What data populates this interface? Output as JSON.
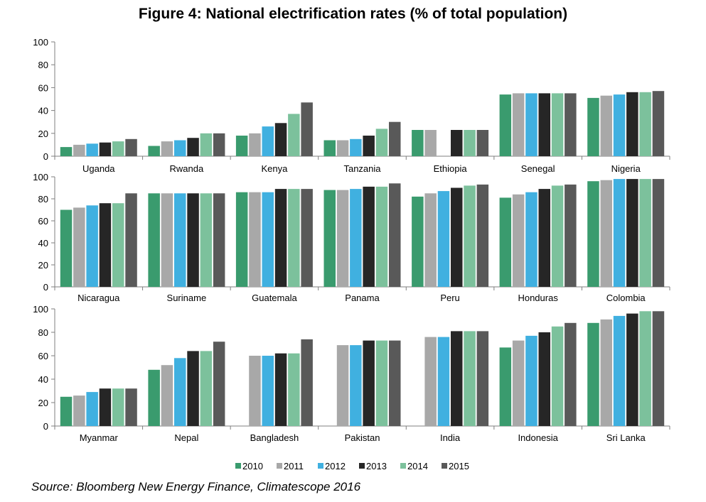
{
  "title": "Figure 4: National electrification rates (% of total population)",
  "source": "Source: Bloomberg New Energy Finance, Climatescope 2016",
  "colors": {
    "axis": "#7f7f7f",
    "text": "#000000",
    "series": [
      "#3a9b6e",
      "#a8a8a8",
      "#40b0e0",
      "#262626",
      "#7cc19c",
      "#595959"
    ]
  },
  "legend": [
    "2010",
    "2011",
    "2012",
    "2013",
    "2014",
    "2015"
  ],
  "chart_data": [
    {
      "type": "bar",
      "title": "",
      "xlabel": "",
      "ylabel": "",
      "ylim": [
        0,
        100
      ],
      "yticks": [
        "0",
        "20",
        "40",
        "60",
        "80",
        "100"
      ],
      "grid": false,
      "legend_position": "bottom",
      "categories": [
        "Uganda",
        "Rwanda",
        "Kenya",
        "Tanzania",
        "Ethiopia",
        "Senegal",
        "Nigeria"
      ],
      "series": [
        {
          "name": "2010",
          "values": [
            8,
            9,
            18,
            14,
            23,
            54,
            51
          ]
        },
        {
          "name": "2011",
          "values": [
            10,
            13,
            20,
            14,
            23,
            55,
            53
          ]
        },
        {
          "name": "2012",
          "values": [
            11,
            14,
            26,
            15,
            null,
            55,
            54
          ]
        },
        {
          "name": "2013",
          "values": [
            12,
            16,
            29,
            18,
            23,
            55,
            56
          ]
        },
        {
          "name": "2014",
          "values": [
            13,
            20,
            37,
            24,
            23,
            55,
            56
          ]
        },
        {
          "name": "2015",
          "values": [
            15,
            20,
            47,
            30,
            23,
            55,
            57
          ]
        }
      ]
    },
    {
      "type": "bar",
      "title": "",
      "xlabel": "",
      "ylabel": "",
      "ylim": [
        0,
        100
      ],
      "yticks": [
        "0",
        "20",
        "40",
        "60",
        "80",
        "100"
      ],
      "grid": false,
      "legend_position": "bottom",
      "categories": [
        "Nicaragua",
        "Suriname",
        "Guatemala",
        "Panama",
        "Peru",
        "Honduras",
        "Colombia"
      ],
      "series": [
        {
          "name": "2010",
          "values": [
            70,
            85,
            86,
            88,
            82,
            81,
            96
          ]
        },
        {
          "name": "2011",
          "values": [
            72,
            85,
            86,
            88,
            85,
            84,
            97
          ]
        },
        {
          "name": "2012",
          "values": [
            74,
            85,
            86,
            89,
            87,
            86,
            98
          ]
        },
        {
          "name": "2013",
          "values": [
            76,
            85,
            89,
            91,
            90,
            89,
            98
          ]
        },
        {
          "name": "2014",
          "values": [
            76,
            85,
            89,
            91,
            92,
            92,
            98
          ]
        },
        {
          "name": "2015",
          "values": [
            85,
            85,
            89,
            94,
            93,
            93,
            98
          ]
        }
      ]
    },
    {
      "type": "bar",
      "title": "",
      "xlabel": "",
      "ylabel": "",
      "ylim": [
        0,
        100
      ],
      "yticks": [
        "0",
        "20",
        "40",
        "60",
        "80",
        "100"
      ],
      "grid": false,
      "legend_position": "bottom",
      "categories": [
        "Myanmar",
        "Nepal",
        "Bangladesh",
        "Pakistan",
        "India",
        "Indonesia",
        "Sri Lanka"
      ],
      "series": [
        {
          "name": "2010",
          "values": [
            25,
            48,
            null,
            null,
            null,
            67,
            88
          ]
        },
        {
          "name": "2011",
          "values": [
            26,
            52,
            60,
            69,
            76,
            73,
            91
          ]
        },
        {
          "name": "2012",
          "values": [
            29,
            58,
            60,
            69,
            76,
            77,
            94
          ]
        },
        {
          "name": "2013",
          "values": [
            32,
            64,
            62,
            73,
            81,
            80,
            96
          ]
        },
        {
          "name": "2014",
          "values": [
            32,
            64,
            62,
            73,
            81,
            85,
            98
          ]
        },
        {
          "name": "2015",
          "values": [
            32,
            72,
            74,
            73,
            81,
            88,
            98
          ]
        }
      ]
    }
  ]
}
